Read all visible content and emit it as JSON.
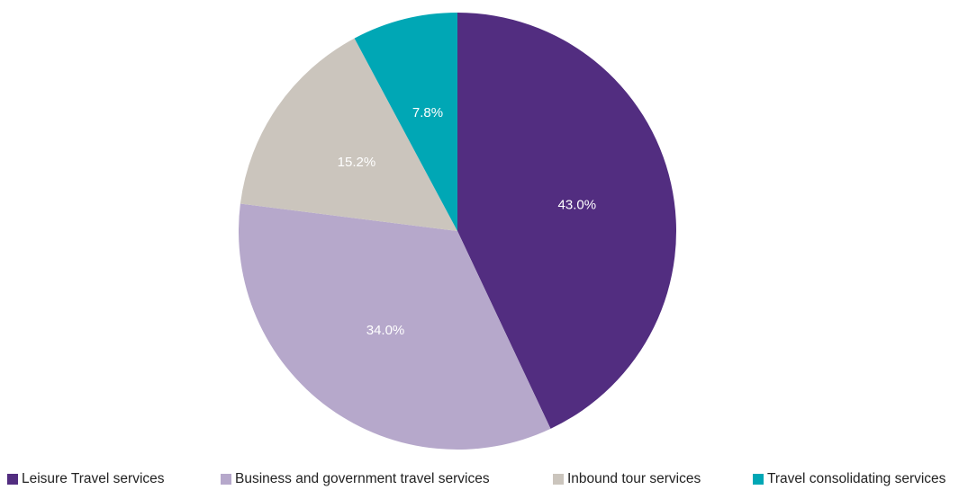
{
  "chart_data": {
    "type": "pie",
    "title": "",
    "slices": [
      {
        "name": "Leisure Travel services",
        "value": 43.0,
        "label": "43.0%",
        "color": "#522d80"
      },
      {
        "name": "Business and government travel services",
        "value": 34.0,
        "label": "34.0%",
        "color": "#b6a8cb"
      },
      {
        "name": "Inbound tour services",
        "value": 15.2,
        "label": "15.2%",
        "color": "#cbc5bd"
      },
      {
        "name": "Travel consolidating services",
        "value": 7.8,
        "label": "7.8%",
        "color": "#00a7b5"
      }
    ],
    "start_angle": "12 o'clock",
    "direction": "clockwise",
    "legend_position": "bottom"
  }
}
